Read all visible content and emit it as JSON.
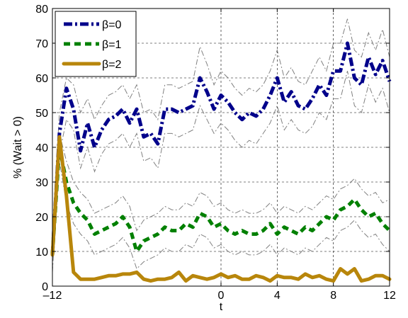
{
  "chart_data": {
    "type": "line",
    "title": "",
    "xlabel": "t",
    "ylabel": "% (Wait > 0)",
    "xlim": [
      -12,
      12
    ],
    "ylim": [
      0,
      80
    ],
    "xticks": [
      -12,
      0,
      4,
      8,
      12
    ],
    "xtick_labels": [
      "–12",
      "0",
      "4",
      "8",
      "12"
    ],
    "yticks": [
      0,
      10,
      20,
      30,
      40,
      50,
      60,
      70,
      80
    ],
    "ytick_labels": [
      "0",
      "10",
      "20",
      "30",
      "40",
      "50",
      "60",
      "70",
      "80"
    ],
    "grid": "dashed at ticks",
    "legend_position": "top-left",
    "x": [
      -12,
      -11.5,
      -11,
      -10.5,
      -10,
      -9.5,
      -9,
      -8.5,
      -8,
      -7.5,
      -7,
      -6.5,
      -6,
      -5.5,
      -5,
      -4.5,
      -4,
      -3.5,
      -3,
      -2.5,
      -2,
      -1.5,
      -1,
      -0.5,
      0,
      0.5,
      1,
      1.5,
      2,
      2.5,
      3,
      3.5,
      4,
      4.5,
      5,
      5.5,
      6,
      6.5,
      7,
      7.5,
      8,
      8.5,
      9,
      9.5,
      10,
      10.5,
      11,
      11.5,
      12
    ],
    "series": [
      {
        "name": "β=0",
        "color": "#00008b",
        "style": "dashdot",
        "values": [
          9,
          44,
          57,
          51,
          39,
          47,
          40,
          45,
          48,
          49,
          51,
          47,
          51,
          43,
          44,
          41,
          51,
          51,
          50,
          51,
          52,
          60,
          56,
          51,
          55,
          53,
          50,
          48,
          50,
          49,
          51,
          55,
          60,
          53,
          56,
          52,
          51,
          54,
          58,
          55,
          62,
          62,
          70,
          60,
          58,
          66,
          61,
          65,
          59
        ]
      },
      {
        "name": "β=1",
        "color": "#008000",
        "style": "dashed",
        "values": [
          9,
          40,
          30,
          24,
          21,
          19,
          15,
          16,
          17,
          18,
          20,
          17,
          10,
          13,
          14,
          15,
          17,
          16,
          16,
          18,
          17,
          21,
          20,
          17,
          18,
          16,
          15,
          16,
          15,
          15,
          16,
          18,
          15,
          17,
          16,
          15,
          17,
          16,
          18,
          20,
          19,
          22,
          23,
          25,
          22,
          20,
          21,
          18,
          16
        ]
      },
      {
        "name": "β=2",
        "color": "#b8860b",
        "style": "solid",
        "values": [
          9,
          43,
          26,
          4,
          2,
          2,
          2,
          2.5,
          3,
          3,
          3.5,
          3.5,
          4,
          2,
          1.5,
          2,
          2,
          2.5,
          4,
          1.5,
          3,
          2.5,
          2,
          2.5,
          3.5,
          2.5,
          3,
          2,
          2,
          3,
          2.5,
          1.5,
          3,
          2.5,
          2.5,
          2,
          3.5,
          2.5,
          3,
          2,
          1.5,
          5,
          3.5,
          5,
          1.5,
          2,
          3,
          3,
          2
        ]
      }
    ],
    "bands": [
      {
        "for": "β=0",
        "color": "#808080",
        "upper": [
          15,
          50,
          60,
          58,
          50,
          54,
          48,
          52,
          55,
          56,
          58,
          54,
          58,
          50,
          51,
          48,
          58,
          58,
          57,
          58,
          59,
          69,
          64,
          58,
          62,
          60,
          57,
          55,
          57,
          56,
          58,
          62,
          68,
          60,
          63,
          59,
          58,
          62,
          66,
          62,
          70,
          70,
          77,
          68,
          66,
          73,
          68,
          74,
          66
        ],
        "lower": [
          4,
          38,
          48,
          45,
          34,
          40,
          33,
          38,
          41,
          42,
          44,
          40,
          44,
          36,
          37,
          34,
          44,
          44,
          43,
          44,
          45,
          52,
          48,
          44,
          47,
          45,
          42,
          40,
          42,
          41,
          44,
          47,
          52,
          45,
          48,
          45,
          44,
          46,
          50,
          48,
          54,
          54,
          62,
          52,
          50,
          58,
          53,
          57,
          50
        ]
      },
      {
        "for": "β=1",
        "color": "#808080",
        "upper": [
          14,
          44,
          36,
          30,
          27,
          25,
          21,
          22,
          23,
          24,
          26,
          23,
          16,
          19,
          20,
          21,
          23,
          22,
          22,
          24,
          23,
          27,
          26,
          23,
          24,
          22,
          21,
          22,
          21,
          21,
          22,
          24,
          21,
          23,
          22,
          21,
          23,
          22,
          24,
          26,
          25,
          28,
          29,
          31,
          28,
          26,
          27,
          24,
          25
        ],
        "lower": [
          5,
          36,
          24,
          18,
          15,
          13,
          9,
          10,
          11,
          12,
          14,
          11,
          5,
          7,
          8,
          9,
          11,
          10,
          10,
          12,
          11,
          15,
          14,
          11,
          12,
          10,
          9,
          10,
          9,
          9,
          10,
          12,
          9,
          11,
          10,
          9,
          11,
          10,
          12,
          14,
          13,
          16,
          17,
          19,
          16,
          14,
          15,
          12,
          10
        ]
      }
    ]
  }
}
